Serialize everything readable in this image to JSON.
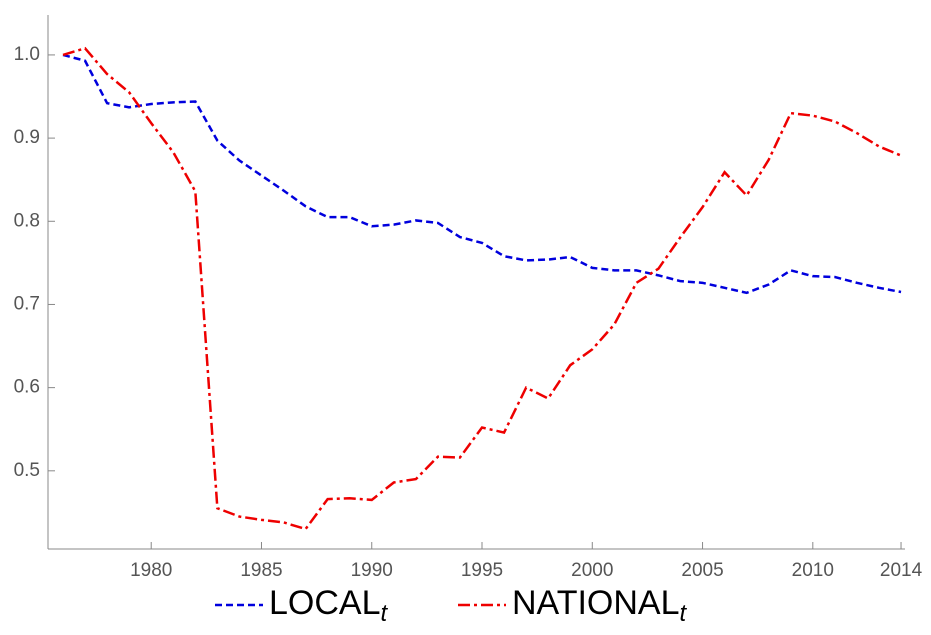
{
  "chart_data": {
    "type": "line",
    "x": [
      1976,
      1977,
      1978,
      1979,
      1980,
      1981,
      1982,
      1983,
      1984,
      1985,
      1986,
      1987,
      1988,
      1989,
      1990,
      1991,
      1992,
      1993,
      1994,
      1995,
      1996,
      1997,
      1998,
      1999,
      2000,
      2001,
      2002,
      2003,
      2004,
      2005,
      2006,
      2007,
      2008,
      2009,
      2010,
      2011,
      2012,
      2013,
      2014
    ],
    "series": [
      {
        "name": "LOCAL",
        "subscript": "t",
        "color": "#0000dd",
        "dash": "dashed",
        "values": [
          1.0,
          0.993,
          0.942,
          0.937,
          0.941,
          0.943,
          0.944,
          0.897,
          0.873,
          0.855,
          0.837,
          0.818,
          0.805,
          0.805,
          0.794,
          0.796,
          0.801,
          0.798,
          0.781,
          0.774,
          0.758,
          0.753,
          0.754,
          0.757,
          0.744,
          0.741,
          0.741,
          0.735,
          0.728,
          0.726,
          0.72,
          0.714,
          0.724,
          0.741,
          0.734,
          0.733,
          0.726,
          0.72,
          0.715
        ]
      },
      {
        "name": "NATIONAL",
        "subscript": "t",
        "color": "#ee0000",
        "dash": "dashdot",
        "values": [
          1.0,
          1.008,
          0.977,
          0.955,
          0.918,
          0.883,
          0.836,
          0.455,
          0.445,
          0.441,
          0.438,
          0.43,
          0.466,
          0.467,
          0.465,
          0.486,
          0.49,
          0.517,
          0.516,
          0.552,
          0.546,
          0.6,
          0.587,
          0.627,
          0.646,
          0.676,
          0.726,
          0.743,
          0.781,
          0.817,
          0.859,
          0.831,
          0.874,
          0.93,
          0.927,
          0.92,
          0.906,
          0.89,
          0.879
        ]
      }
    ],
    "xlim": [
      1975.32,
      2014.18
    ],
    "xticks": [
      1980,
      1985,
      1990,
      1995,
      2000,
      2005,
      2010,
      2014
    ],
    "ylim": [
      0.406,
      1.048
    ],
    "yticks": [
      0.5,
      0.6,
      0.7,
      0.8,
      0.9,
      {
        "value": 1,
        "label": "1.0"
      }
    ],
    "legend": "bottom"
  }
}
